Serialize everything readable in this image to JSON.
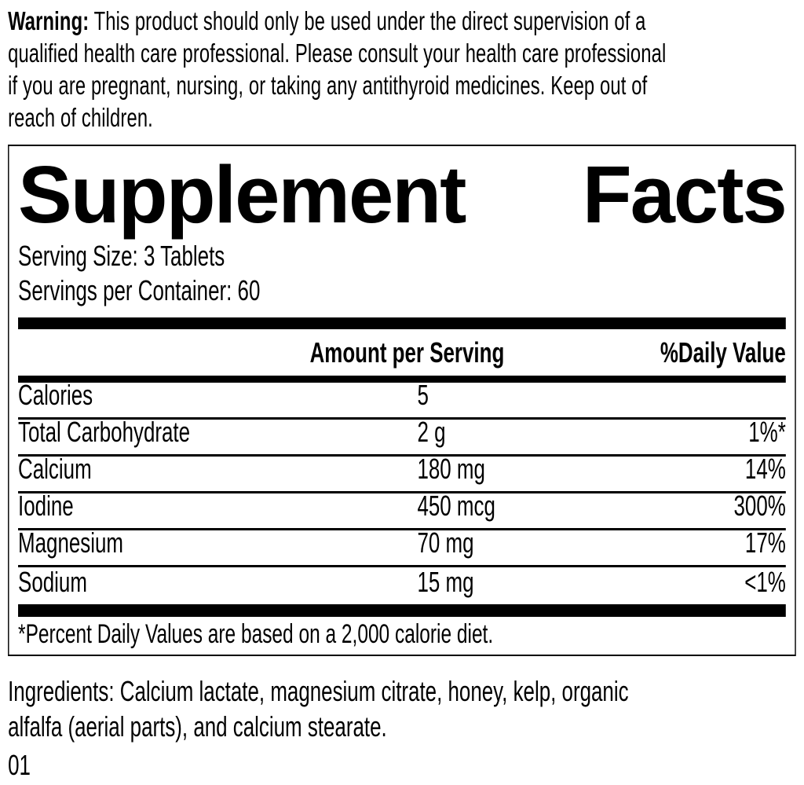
{
  "warning": {
    "label": "Warning:",
    "text": "This product should only be used under the direct supervision of a\nqualified health care professional. Please consult your health care professional\nif you are pregnant, nursing, or taking any antithyroid medicines. Keep out of\nreach of children."
  },
  "panel": {
    "title_left": "Supplement",
    "title_right": "Facts",
    "serving_size": "Serving Size: 3 Tablets",
    "servings_per_container": "Servings per Container: 60",
    "columns": {
      "amount_header": "Amount per Serving",
      "daily_value_header": "%Daily Value"
    },
    "rows": [
      {
        "name": "Calories",
        "amount": "5",
        "dv": ""
      },
      {
        "name": "Total Carbohydrate",
        "amount": "2 g",
        "dv": "1%*"
      },
      {
        "name": "Calcium",
        "amount": "180 mg",
        "dv": "14%"
      },
      {
        "name": "Iodine",
        "amount": "450 mcg",
        "dv": "300%"
      },
      {
        "name": "Magnesium",
        "amount": "70 mg",
        "dv": "17%"
      },
      {
        "name": "Sodium",
        "amount": "15 mg",
        "dv": "<1%"
      }
    ],
    "footnote": "*Percent Daily Values are based on a 2,000 calorie diet."
  },
  "ingredients_text": "Ingredients: Calcium lactate, magnesium citrate, honey, kelp, organic\nalfalfa (aerial parts), and calcium stearate.",
  "footer_code": "01",
  "colors": {
    "ink": "#000000",
    "paper": "#ffffff"
  }
}
